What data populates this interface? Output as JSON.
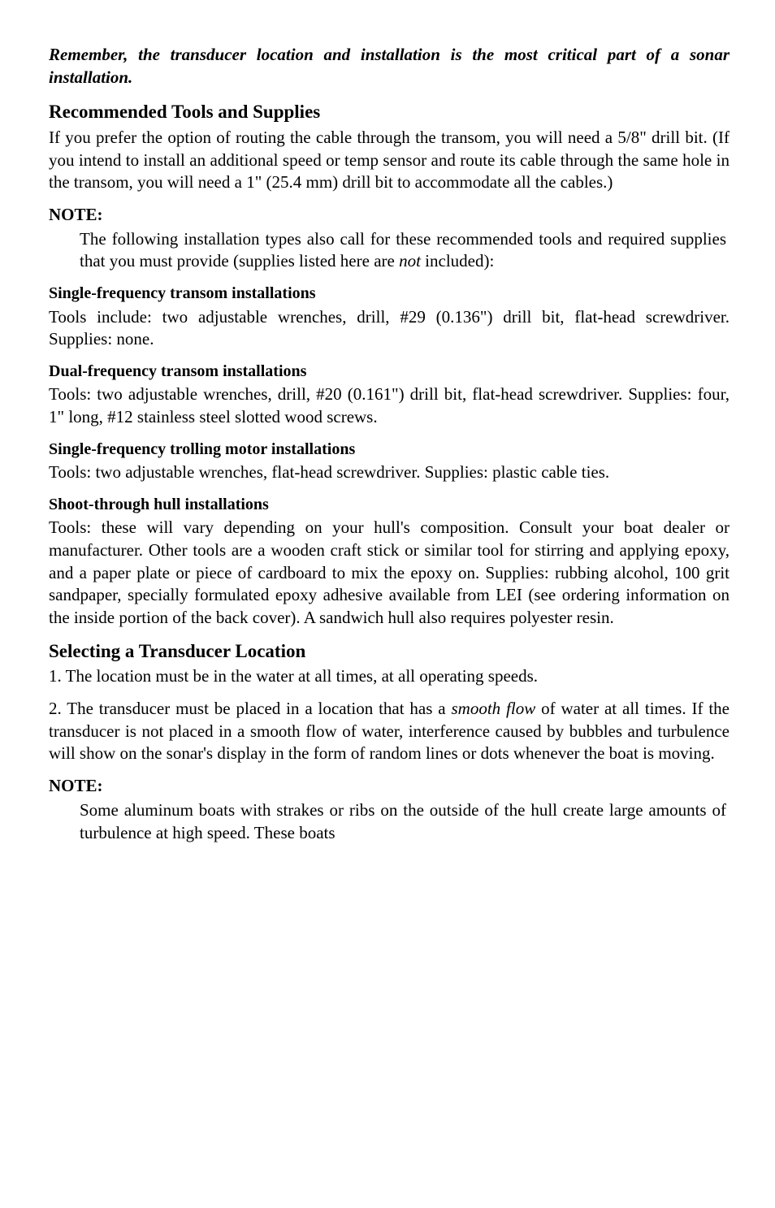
{
  "intro_heading": "Remember, the transducer location and installation is the most critical part of a sonar installation.",
  "tools": {
    "heading": "Recommended Tools and Supplies",
    "body": "If you prefer the option of routing the cable through the transom, you will need a 5/8\" drill bit. (If you intend to install an additional speed or temp sensor and route its cable through the same hole in the transom, you will need a 1\" (25.4 mm) drill bit to accommodate all the cables.)"
  },
  "note1": {
    "label": "NOTE:",
    "body_pre": "The following installation types also call for these recommended tools and required supplies that you must provide (supplies listed here are ",
    "body_ital": "not",
    "body_post": " included):"
  },
  "single_transom": {
    "heading": "Single-frequency transom installations",
    "body": "Tools include: two adjustable wrenches, drill, #29 (0.136\") drill bit, flat-head screwdriver. Supplies: none."
  },
  "dual_transom": {
    "heading": "Dual-frequency transom installations",
    "body": "Tools: two adjustable wrenches, drill, #20 (0.161\") drill bit, flat-head screwdriver. Supplies: four, 1\" long, #12 stainless steel slotted wood screws."
  },
  "trolling": {
    "heading": "Single-frequency trolling motor installations",
    "body": "Tools: two adjustable wrenches, flat-head screwdriver. Supplies: plastic cable ties."
  },
  "shoot": {
    "heading": "Shoot-through hull installations",
    "body": "Tools: these will vary depending on your hull's composition. Consult your boat dealer or manufacturer. Other tools are a wooden craft stick or similar tool for stirring and applying epoxy, and a paper plate or piece of cardboard to mix the epoxy on. Supplies: rubbing alcohol, 100 grit sandpaper, specially formulated epoxy adhesive available from LEI (see ordering information on the inside portion of the back cover). A sandwich hull also requires polyester resin."
  },
  "selecting": {
    "heading": "Selecting a Transducer Location",
    "item1": "1. The location must be in the water at all times, at all operating speeds.",
    "item2_pre": "2. The transducer must be placed in a location that has a ",
    "item2_ital": "smooth flow",
    "item2_post": " of water at all times. If the transducer is not placed in a smooth flow of water, interference caused by bubbles and turbulence will show on the sonar's display in the form of random lines or dots whenever the boat is moving."
  },
  "note2": {
    "label": "NOTE:",
    "body": "Some aluminum boats with strakes or ribs on the outside of the hull create large amounts of turbulence at high speed. These boats"
  }
}
